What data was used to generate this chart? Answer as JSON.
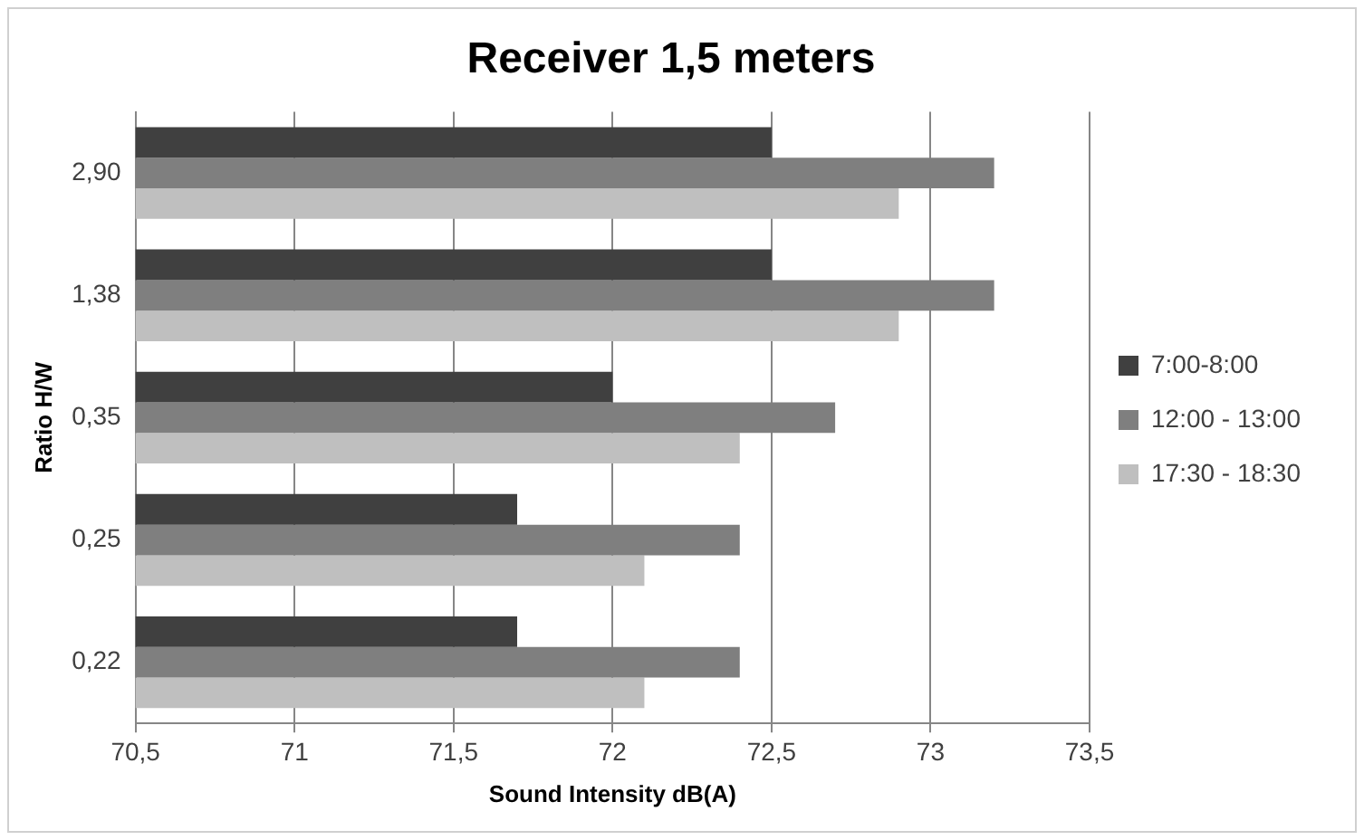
{
  "chart_data": {
    "type": "bar",
    "orientation": "horizontal",
    "title": "Receiver 1,5 meters",
    "xlabel": "Sound Intensity dB(A)",
    "ylabel": "Ratio H/W",
    "categories": [
      "2,90",
      "1,38",
      "0,35",
      "0,25",
      "0,22"
    ],
    "series": [
      {
        "name": "7:00-8:00",
        "color": "#404040",
        "values": [
          72.5,
          72.5,
          72.0,
          71.7,
          71.7
        ]
      },
      {
        "name": "12:00 - 13:00",
        "color": "#7f7f7f",
        "values": [
          73.2,
          73.2,
          72.7,
          72.4,
          72.4
        ]
      },
      {
        "name": "17:30 - 18:30",
        "color": "#bfbfbf",
        "values": [
          72.9,
          72.9,
          72.4,
          72.1,
          72.1
        ]
      }
    ],
    "xlim": [
      70.5,
      73.5
    ],
    "xticks": [
      {
        "value": 70.5,
        "label": "70,5"
      },
      71,
      {
        "value": 71.5,
        "label": "71,5"
      },
      72,
      {
        "value": 72.5,
        "label": "72,5"
      },
      73,
      {
        "value": 73.5,
        "label": "73,5"
      }
    ],
    "grid": "x",
    "legend": "right"
  }
}
